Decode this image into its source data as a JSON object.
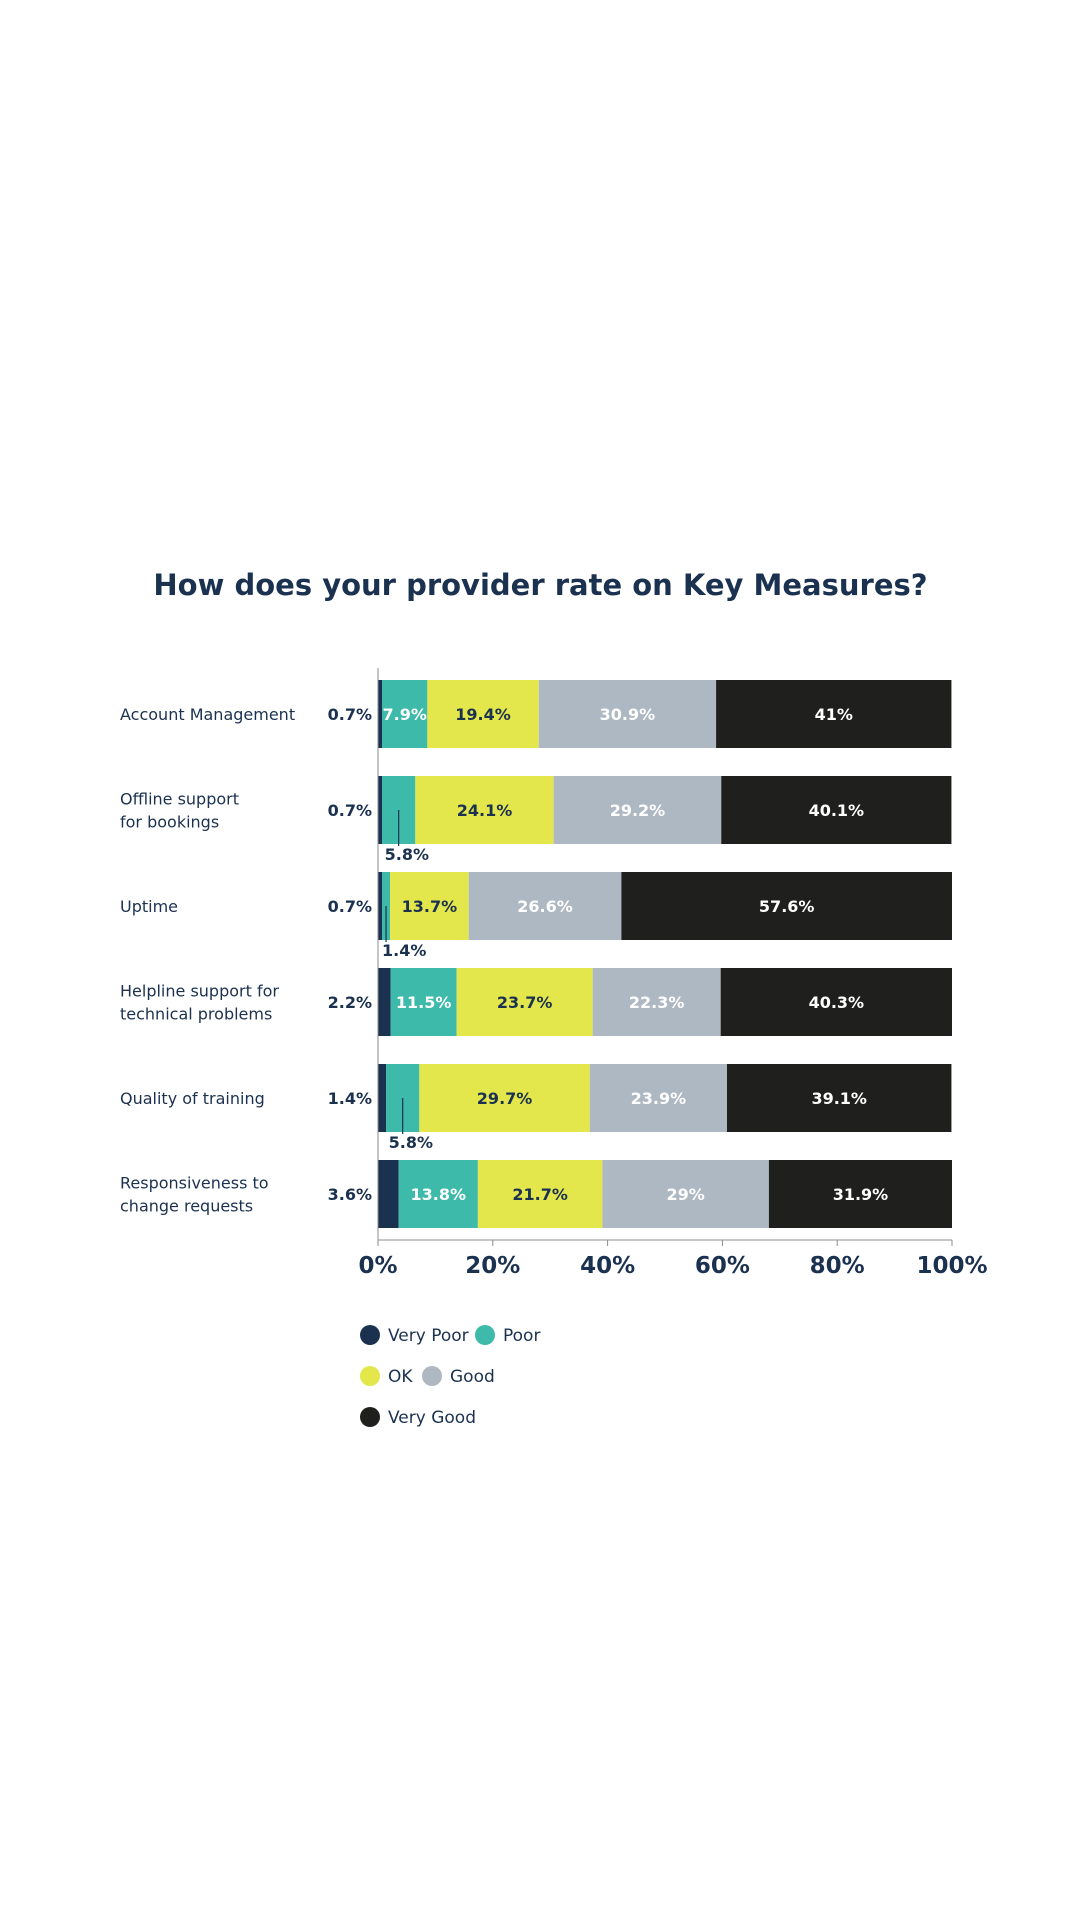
{
  "chart_data": {
    "type": "bar",
    "orientation": "horizontal",
    "stacked": true,
    "title": "How does your provider rate on Key Measures?",
    "categories": [
      "Account Management",
      "Offline support\nfor bookings",
      "Uptime",
      "Helpline support for\ntechnical problems",
      "Quality of training",
      "Responsiveness to\nchange requests"
    ],
    "series": [
      {
        "name": "Very Poor",
        "color": "#1b3150",
        "label_color": "#ffffff",
        "values": [
          0.7,
          0.7,
          0.7,
          2.2,
          1.4,
          3.6
        ]
      },
      {
        "name": "Poor",
        "color": "#3dbaa9",
        "label_color": "#ffffff",
        "values": [
          7.9,
          5.8,
          1.4,
          11.5,
          5.8,
          13.8
        ]
      },
      {
        "name": "OK",
        "color": "#e3e74b",
        "label_color": "#1b3150",
        "values": [
          19.4,
          24.1,
          13.7,
          23.7,
          29.7,
          21.7
        ]
      },
      {
        "name": "Good",
        "color": "#adb8c2",
        "label_color": "#ffffff",
        "values": [
          30.9,
          29.2,
          26.6,
          22.3,
          23.9,
          29
        ]
      },
      {
        "name": "Very Good",
        "color": "#1f1f1e",
        "label_color": "#ffffff",
        "values": [
          41,
          40.1,
          57.6,
          40.3,
          39.1,
          31.9
        ]
      }
    ],
    "value_suffix": "%",
    "xlim": [
      0,
      100
    ],
    "xticks": [
      "0%",
      "20%",
      "40%",
      "60%",
      "80%",
      "100%"
    ],
    "legend_position": "bottom-left",
    "grid": false
  }
}
